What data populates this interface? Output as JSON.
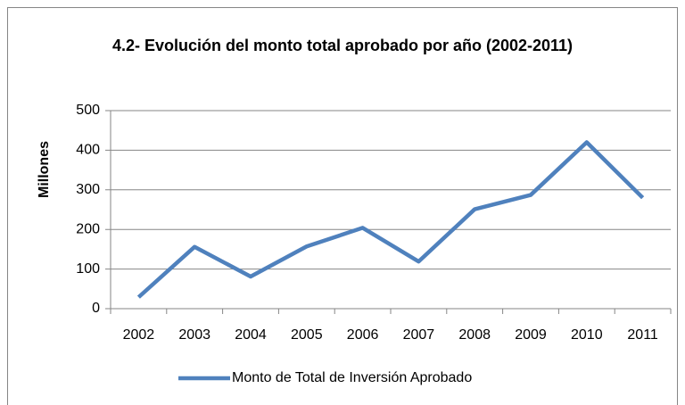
{
  "chart_data": {
    "type": "line",
    "title": "4.2- Evolución del monto total aprobado por año (2002-2011)",
    "y_label": "Millones",
    "categories": [
      "2002",
      "2003",
      "2004",
      "2005",
      "2006",
      "2007",
      "2008",
      "2009",
      "2010",
      "2011"
    ],
    "series": [
      {
        "name": "Monto de Total de Inversión Aprobado",
        "color": "#4f81bd",
        "values": [
          29,
          156,
          81,
          157,
          204,
          119,
          251,
          287,
          420,
          280
        ]
      }
    ],
    "ylim": [
      0,
      500
    ],
    "yticks": [
      0,
      100,
      200,
      300,
      400,
      500
    ],
    "grid": true,
    "legend": "bottom"
  }
}
